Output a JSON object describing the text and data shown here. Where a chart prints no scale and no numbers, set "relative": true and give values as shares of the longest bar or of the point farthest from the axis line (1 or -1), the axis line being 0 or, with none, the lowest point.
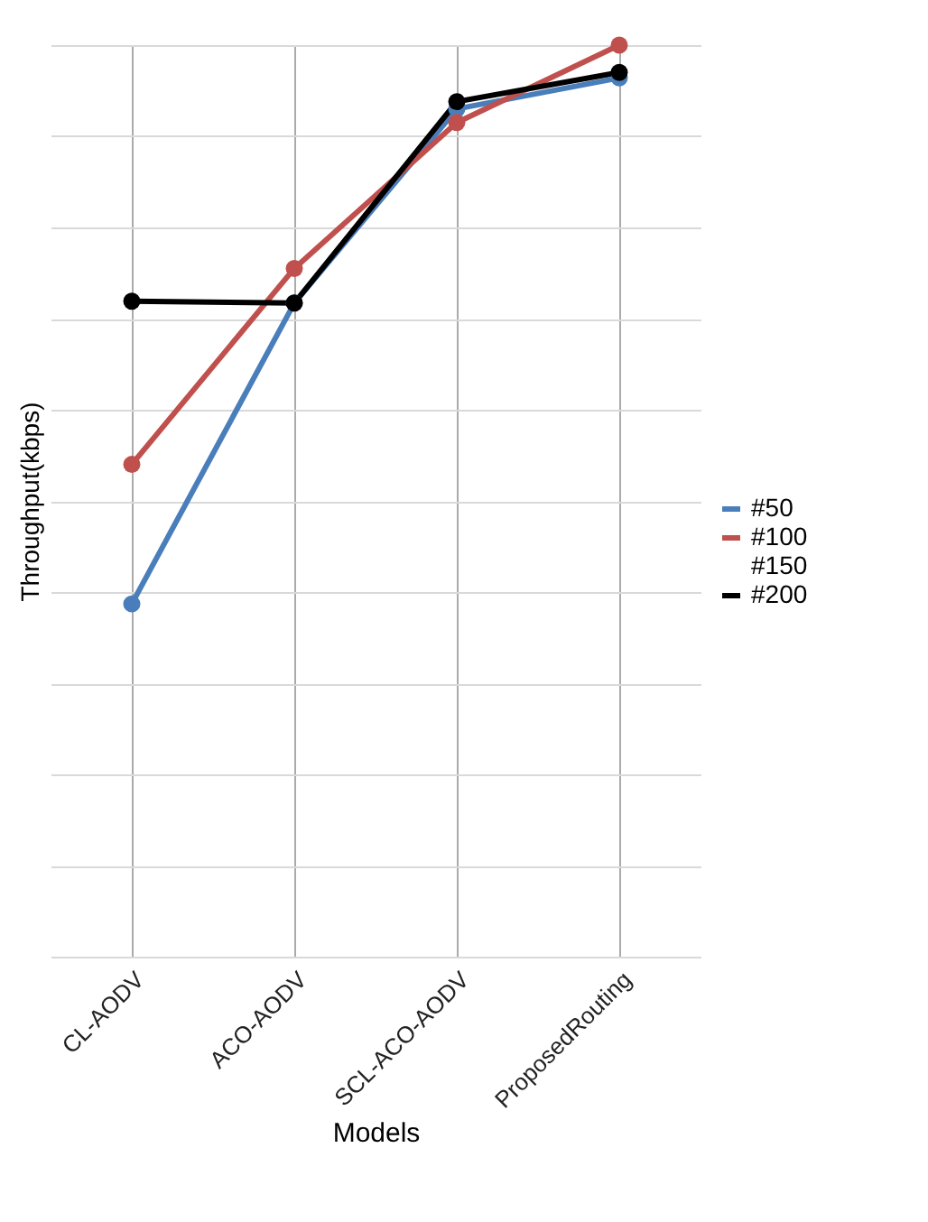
{
  "chart_data": {
    "type": "line",
    "xlabel": "Models",
    "ylabel": "Throughput(kbps)",
    "relative": true,
    "categories": [
      "CL-AODV",
      "ACO-AODV",
      "SCL-ACO-AODV",
      "ProposedRouting"
    ],
    "series": [
      {
        "name": "#50",
        "color": "#4a7ebb",
        "values": [
          0.387,
          0.717,
          0.93,
          0.964
        ]
      },
      {
        "name": "#100",
        "color": "#c0504d",
        "values": [
          0.54,
          0.755,
          0.915,
          1
        ]
      },
      {
        "name": "#150",
        "values": [
          null,
          null,
          null,
          null
        ]
      },
      {
        "name": "#200",
        "color": "#000000",
        "values": [
          0.719,
          0.717,
          0.938,
          0.97
        ]
      }
    ],
    "grid": true,
    "legend": "right",
    "marker": "circle",
    "line_style": "solid"
  }
}
